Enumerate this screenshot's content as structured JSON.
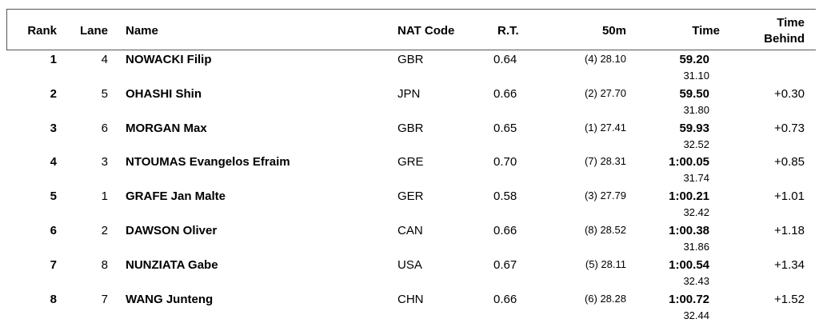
{
  "headers": {
    "rank": "Rank",
    "lane": "Lane",
    "name": "Name",
    "nat": "NAT Code",
    "rt": "R.T.",
    "split50": "50m",
    "time": "Time",
    "behind_1": "Time",
    "behind_2": "Behind"
  },
  "rows": [
    {
      "rank": "1",
      "lane": "4",
      "name": "NOWACKI Filip",
      "nat": "GBR",
      "rt": "0.64",
      "split50": "(4) 28.10",
      "time": "59.20",
      "split2": "31.10",
      "behind": ""
    },
    {
      "rank": "2",
      "lane": "5",
      "name": "OHASHI Shin",
      "nat": "JPN",
      "rt": "0.66",
      "split50": "(2) 27.70",
      "time": "59.50",
      "split2": "31.80",
      "behind": "+0.30"
    },
    {
      "rank": "3",
      "lane": "6",
      "name": "MORGAN Max",
      "nat": "GBR",
      "rt": "0.65",
      "split50": "(1) 27.41",
      "time": "59.93",
      "split2": "32.52",
      "behind": "+0.73"
    },
    {
      "rank": "4",
      "lane": "3",
      "name": "NTOUMAS Evangelos Efraim",
      "nat": "GRE",
      "rt": "0.70",
      "split50": "(7) 28.31",
      "time": "1:00.05",
      "split2": "31.74",
      "behind": "+0.85"
    },
    {
      "rank": "5",
      "lane": "1",
      "name": "GRAFE Jan Malte",
      "nat": "GER",
      "rt": "0.58",
      "split50": "(3) 27.79",
      "time": "1:00.21",
      "split2": "32.42",
      "behind": "+1.01"
    },
    {
      "rank": "6",
      "lane": "2",
      "name": "DAWSON Oliver",
      "nat": "CAN",
      "rt": "0.66",
      "split50": "(8) 28.52",
      "time": "1:00.38",
      "split2": "31.86",
      "behind": "+1.18"
    },
    {
      "rank": "7",
      "lane": "8",
      "name": "NUNZIATA Gabe",
      "nat": "USA",
      "rt": "0.67",
      "split50": "(5) 28.11",
      "time": "1:00.54",
      "split2": "32.43",
      "behind": "+1.34"
    },
    {
      "rank": "8",
      "lane": "7",
      "name": "WANG Junteng",
      "nat": "CHN",
      "rt": "0.66",
      "split50": "(6) 28.28",
      "time": "1:00.72",
      "split2": "32.44",
      "behind": "+1.52"
    }
  ]
}
